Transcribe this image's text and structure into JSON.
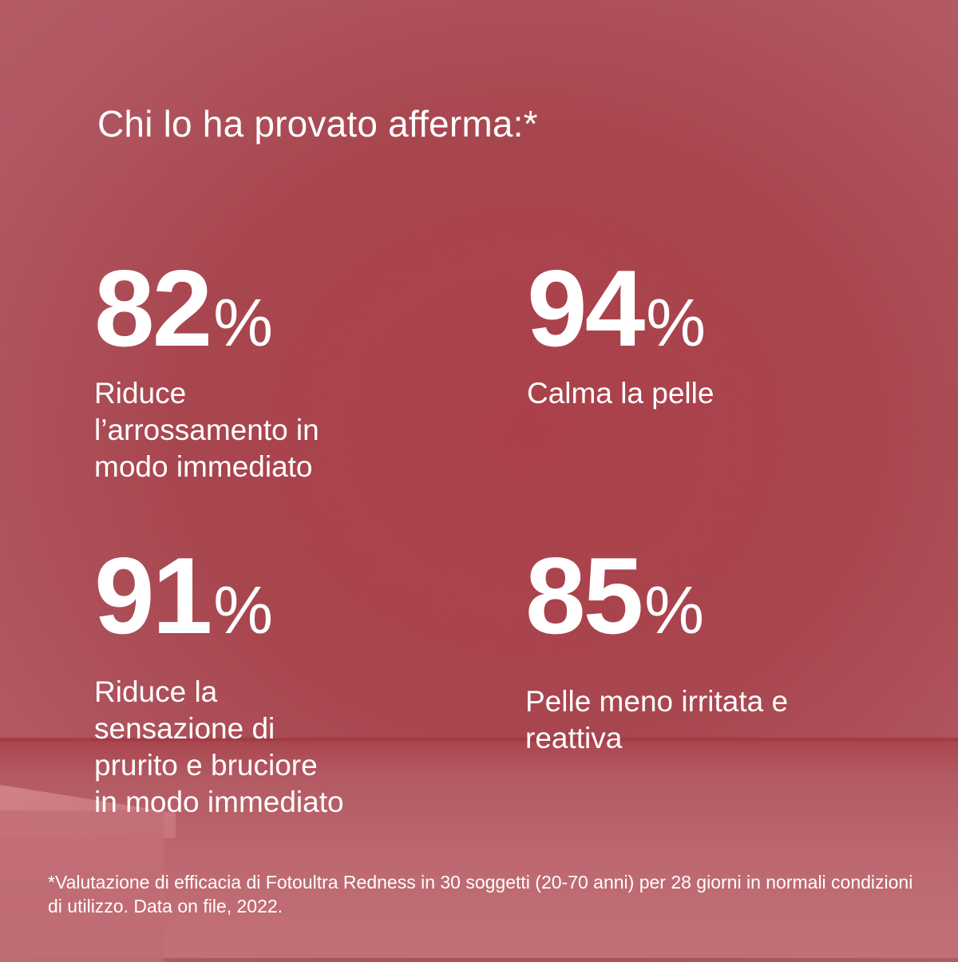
{
  "headline": "Chi lo ha provato afferma:*",
  "stats": [
    {
      "value": "82",
      "unit": "%",
      "description": "Riduce\nl’arrossamento in\nmodo immediato"
    },
    {
      "value": "94",
      "unit": "%",
      "description": "Calma la pelle"
    },
    {
      "value": "91",
      "unit": "%",
      "description": "Riduce la\nsensazione di\nprurito e bruciore\nin modo immediato"
    },
    {
      "value": "85",
      "unit": "%",
      "description": "Pelle meno irritata e\nreattiva"
    }
  ],
  "footnote": "*Valutazione di efficacia di Fotoultra Redness in 30 soggetti (20-70 anni) per 28 giorni in normali condizioni di utilizzo. Data on file, 2022.",
  "colors": {
    "background": "#a8464f",
    "text": "#ffffff"
  }
}
